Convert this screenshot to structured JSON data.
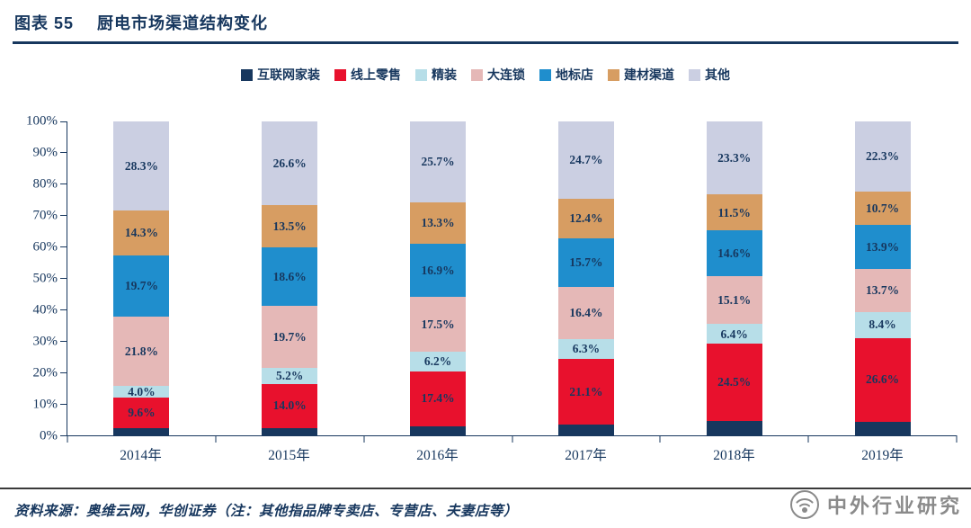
{
  "header": {
    "figure_label": "图表 55",
    "title": "厨电市场渠道结构变化"
  },
  "chart_data": {
    "type": "bar",
    "stacked": true,
    "title": "厨电市场渠道结构变化",
    "categories": [
      "2014年",
      "2015年",
      "2016年",
      "2017年",
      "2018年",
      "2019年"
    ],
    "series": [
      {
        "name": "互联网家装",
        "color": "#17375E",
        "show_labels": false,
        "values": [
          2.3,
          2.4,
          3.0,
          3.4,
          4.6,
          4.4
        ]
      },
      {
        "name": "线上零售",
        "color": "#E8112D",
        "values": [
          9.6,
          14.0,
          17.4,
          21.1,
          24.5,
          26.6
        ]
      },
      {
        "name": "精装",
        "color": "#B7DEE8",
        "values": [
          4.0,
          5.2,
          6.2,
          6.3,
          6.4,
          8.4
        ]
      },
      {
        "name": "大连锁",
        "color": "#E5B8B7",
        "values": [
          21.8,
          19.7,
          17.5,
          16.4,
          15.1,
          13.7
        ]
      },
      {
        "name": "地标店",
        "color": "#1F8ECD",
        "values": [
          19.7,
          18.6,
          16.9,
          15.7,
          14.6,
          13.9
        ]
      },
      {
        "name": "建材渠道",
        "color": "#D79D62",
        "values": [
          14.3,
          13.5,
          13.3,
          12.4,
          11.5,
          10.7
        ]
      },
      {
        "name": "其他",
        "color": "#CBCFE2",
        "values": [
          28.3,
          26.6,
          25.7,
          24.7,
          23.3,
          22.3
        ]
      }
    ],
    "ylim": [
      0,
      100
    ],
    "ytick_labels": [
      "100%",
      "90%",
      "80%",
      "70%",
      "60%",
      "50%",
      "40%",
      "30%",
      "20%",
      "10%",
      "0%"
    ],
    "grid": false,
    "legend_position": "top"
  },
  "footer": {
    "source_note": "资料来源：奥维云网，华创证券（注：其他指品牌专卖店、专营店、夫妻店等）"
  },
  "watermark": {
    "text": "中外行业研究"
  }
}
